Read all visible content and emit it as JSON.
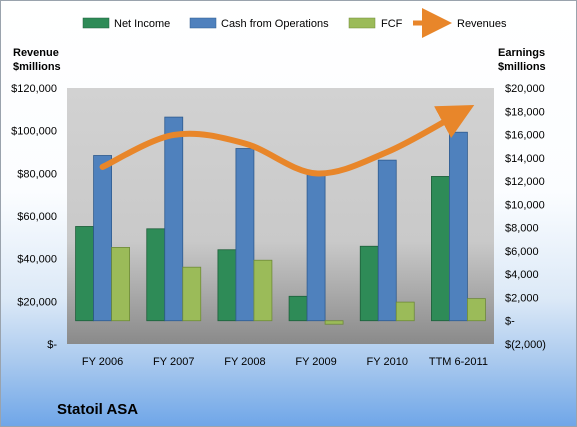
{
  "chart_data": {
    "type": "bar",
    "title": "",
    "company": "Statoil ASA",
    "categories": [
      "FY 2006",
      "FY 2007",
      "FY 2008",
      "FY 2009",
      "FY 2010",
      "TTM 6-2011"
    ],
    "left_axis": {
      "title_line1": "Revenue",
      "title_line2": "$millions",
      "ticks": [
        "$120,000",
        "$100,000",
        "$80,000",
        "$60,000",
        "$40,000",
        "$20,000",
        "$-"
      ],
      "range": [
        0,
        120000
      ]
    },
    "right_axis": {
      "title_line1": "Earnings",
      "title_line2": "$millions",
      "ticks": [
        "$20,000",
        "$18,000",
        "$16,000",
        "$14,000",
        "$12,000",
        "$10,000",
        "$8,000",
        "$6,000",
        "$4,000",
        "$2,000",
        "$-",
        "$(2,000)"
      ],
      "range": [
        -2000,
        20000
      ]
    },
    "series": [
      {
        "name": "Net Income",
        "axis": "right",
        "kind": "bar",
        "color": "#2e8b57",
        "values": [
          8100,
          7900,
          6100,
          2100,
          6400,
          12400
        ]
      },
      {
        "name": "Cash from Operations",
        "axis": "right",
        "kind": "bar",
        "color": "#4f81bd",
        "values": [
          14200,
          17500,
          14800,
          12700,
          13800,
          16200
        ]
      },
      {
        "name": "FCF",
        "axis": "right",
        "kind": "bar",
        "color": "#9bbb59",
        "values": [
          6300,
          4600,
          5200,
          -300,
          1600,
          1900
        ]
      },
      {
        "name": "Revenues",
        "axis": "left",
        "kind": "line",
        "color": "#e8862a",
        "values": [
          83000,
          98000,
          94000,
          80000,
          90000,
          108000
        ]
      }
    ],
    "grid": false,
    "legend_position": "top"
  }
}
